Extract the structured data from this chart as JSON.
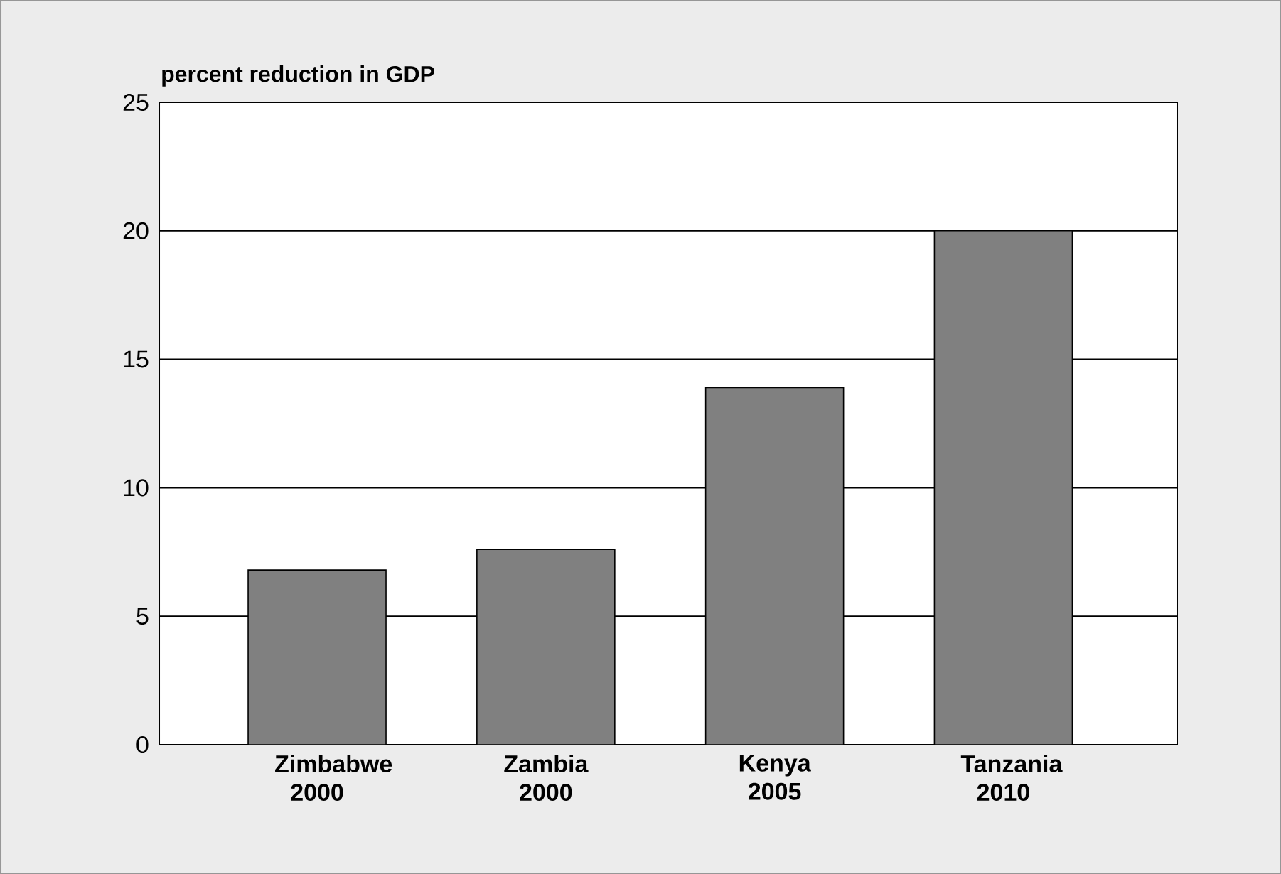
{
  "chart_data": {
    "type": "bar",
    "ylabel": "percent reduction in GDP",
    "categories": [
      "Zimbabwe 2000",
      "Zambia 2000",
      "Kenya 2005",
      "Tanzania 2010"
    ],
    "values": [
      6.8,
      7.6,
      13.9,
      20.0
    ],
    "color": "#808080",
    "ylim": [
      0,
      25
    ],
    "yticks": [
      0,
      5,
      10,
      15,
      20,
      25
    ],
    "grid": "y"
  }
}
